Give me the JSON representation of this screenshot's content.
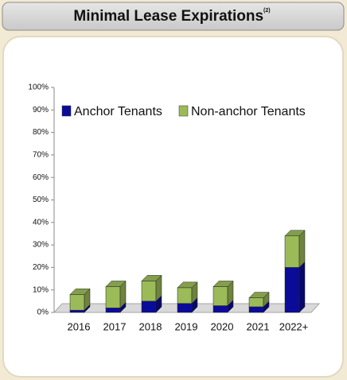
{
  "chart_data": {
    "type": "bar3d_stacked",
    "title": "Minimal Lease Expirations",
    "title_note": "(2)",
    "categories": [
      "2016",
      "2017",
      "2018",
      "2019",
      "2020",
      "2021",
      "2022+"
    ],
    "series": [
      {
        "name": "Anchor Tenants",
        "color": "#0b0b9a",
        "values": [
          1,
          2,
          5,
          4,
          3,
          2.5,
          20
        ]
      },
      {
        "name": "Non-anchor Tenants",
        "color": "#9bbb59",
        "values": [
          7,
          9.5,
          9,
          7,
          8.5,
          4,
          14
        ]
      }
    ],
    "ylim": [
      0,
      100
    ],
    "yticks": [
      {
        "value": 0,
        "label": "0%"
      },
      {
        "value": 10,
        "label": "10%"
      },
      {
        "value": 20,
        "label": "20%"
      },
      {
        "value": 30,
        "label": "30%"
      },
      {
        "value": 40,
        "label": "40%"
      },
      {
        "value": 50,
        "label": "50%"
      },
      {
        "value": 60,
        "label": "60%"
      },
      {
        "value": 70,
        "label": "70%"
      },
      {
        "value": 80,
        "label": "80%"
      },
      {
        "value": 90,
        "label": "90%"
      },
      {
        "value": 100,
        "label": "100%"
      }
    ],
    "legend": "top"
  }
}
